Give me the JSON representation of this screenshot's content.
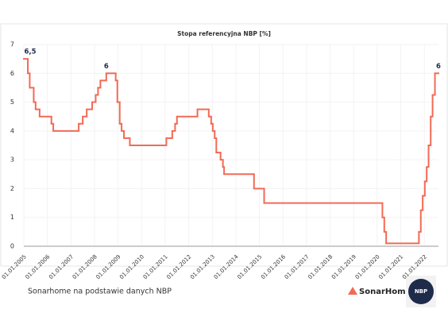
{
  "chart_data": {
    "type": "step-line",
    "title": "Stopa referencyjna NBP [%]",
    "color": "#f26a55",
    "x": [
      2005.0,
      2005.17,
      2005.25,
      2005.42,
      2005.5,
      2005.67,
      2006.17,
      2006.25,
      2007.33,
      2007.5,
      2007.67,
      2007.9,
      2008.05,
      2008.15,
      2008.25,
      2008.5,
      2008.9,
      2008.97,
      2009.07,
      2009.15,
      2009.25,
      2009.5,
      2011.05,
      2011.3,
      2011.42,
      2011.5,
      2012.37,
      2012.85,
      2012.95,
      2013.02,
      2013.1,
      2013.17,
      2013.35,
      2013.45,
      2013.5,
      2014.77,
      2015.2,
      2020.22,
      2020.3,
      2020.38,
      2021.77,
      2021.85,
      2021.93,
      2022.02,
      2022.1,
      2022.18,
      2022.27,
      2022.35,
      2022.45,
      2022.6
    ],
    "values": [
      6.5,
      6.0,
      5.5,
      5.0,
      4.75,
      4.5,
      4.25,
      4.0,
      4.25,
      4.5,
      4.75,
      5.0,
      5.25,
      5.5,
      5.75,
      6.0,
      5.75,
      5.0,
      4.25,
      4.0,
      3.75,
      3.5,
      3.75,
      4.0,
      4.25,
      4.5,
      4.75,
      4.5,
      4.25,
      4.0,
      3.75,
      3.25,
      3.0,
      2.75,
      2.5,
      2.0,
      1.5,
      1.0,
      0.5,
      0.1,
      0.5,
      1.25,
      1.75,
      2.25,
      2.75,
      3.5,
      4.5,
      5.25,
      6.0,
      6.0
    ],
    "annotations": [
      {
        "label": "6,5",
        "value": 6.5,
        "x": 2005.0
      },
      {
        "label": "6",
        "value": 6.0,
        "x": 2008.5
      },
      {
        "label": "6",
        "value": 6.0,
        "x": 2022.6
      }
    ],
    "xlim": [
      2005,
      2022.6
    ],
    "xticks": [
      {
        "value": 2005,
        "label": "01.01.2005"
      },
      {
        "value": 2006,
        "label": "01.01.2006"
      },
      {
        "value": 2007,
        "label": "01.01.2007"
      },
      {
        "value": 2008,
        "label": "01.01.2008"
      },
      {
        "value": 2009,
        "label": "01.01.2009"
      },
      {
        "value": 2010,
        "label": "01.01.2010"
      },
      {
        "value": 2011,
        "label": "01.01.2011"
      },
      {
        "value": 2012,
        "label": "01.01.2012"
      },
      {
        "value": 2013,
        "label": "01.01.2013"
      },
      {
        "value": 2014,
        "label": "01.01.2014"
      },
      {
        "value": 2015,
        "label": "01.01.2015"
      },
      {
        "value": 2016,
        "label": "01.01.2016"
      },
      {
        "value": 2017,
        "label": "01.01.2017"
      },
      {
        "value": 2018,
        "label": "01.01.2018"
      },
      {
        "value": 2019,
        "label": "01.01.2019"
      },
      {
        "value": 2020,
        "label": "01.01.2020"
      },
      {
        "value": 2021,
        "label": "01.01.2021"
      },
      {
        "value": 2022,
        "label": "01.01.2022"
      }
    ],
    "ylim": [
      0,
      7
    ],
    "yticks": [
      0,
      1,
      2,
      3,
      4,
      5,
      6,
      7
    ],
    "grid": true,
    "source": "Sonarhome na podstawie danych NBP",
    "logos": [
      "SonarHome",
      "NBP"
    ]
  }
}
